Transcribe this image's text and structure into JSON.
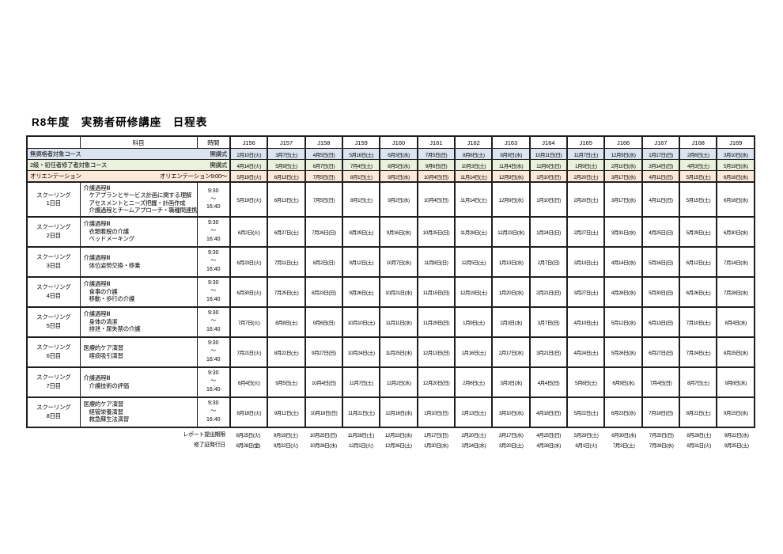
{
  "page": {
    "title": "R8年度　実務者研修講座　日程表"
  },
  "table": {
    "subject_header": "科目",
    "time_header": "時間",
    "class_columns": [
      "J156",
      "J157",
      "J158",
      "J159",
      "J160",
      "J161",
      "J162",
      "J163",
      "J164",
      "J165",
      "J166",
      "J167",
      "J168",
      "J169"
    ],
    "row_colors": {
      "no_qualification": "#dbe5f1",
      "level2_completed": "#eaf1dd",
      "orientation": "#fde9d9"
    },
    "course_rows": [
      {
        "name": "無資格者対象コース",
        "time_label": "開講式",
        "color": "#dbe5f1",
        "dates": [
          "2月10日(火)",
          "3月7日(土)",
          "4月5日(日)",
          "5月16日(土)",
          "6月3日(水)",
          "7月5日(日)",
          "8月8日(土)",
          "9月9日(水)",
          "10月11日(日)",
          "11月7日(土)",
          "12月9日(水)",
          "1月17日(日)",
          "2月6日(土)",
          "3月10日(水)"
        ]
      },
      {
        "name": "2級・初任者修了者対象コース",
        "time_label": "開講式",
        "color": "#eaf1dd",
        "dates": [
          "4月14日(火)",
          "5月9日(土)",
          "6月7日(日)",
          "7月4日(土)",
          "8月5日(水)",
          "9月6日(日)",
          "10月3日(土)",
          "11月4日(水)",
          "12月6日(日)",
          "1月9日(土)",
          "2月10日(水)",
          "3月14日(日)",
          "4月3日(土)",
          "5月19日(水)"
        ]
      },
      {
        "name": "オリエンテーション",
        "time_label": "オリエンテーション9:00～",
        "color": "#fde9d9",
        "dates": [
          "5月19日(火)",
          "6月13日(土)",
          "7月5日(日)",
          "8月1日(土)",
          "9月2日(水)",
          "10月4日(日)",
          "11月14日(土)",
          "12月9日(水)",
          "1月10日(日)",
          "2月20日(土)",
          "3月17日(水)",
          "4月11日(日)",
          "5月15日(土)",
          "6月16日(水)"
        ]
      }
    ],
    "schooling_rows": [
      {
        "day_line1": "スクーリング",
        "day_line2": "1日目",
        "subject_title": "介護過程Ⅲ",
        "subject_details": [
          "ケアプランとサービス計画に関する理解",
          "アセスメントとニーズ把握・計画作成",
          "介護過程とチームアプローチ・職種間連携"
        ],
        "time_start": "9:30",
        "time_tilde": "～",
        "time_end": "16:40",
        "dates": [
          "5月19日(火)",
          "6月13日(土)",
          "7月5日(日)",
          "8月1日(土)",
          "9月2日(水)",
          "10月4日(日)",
          "11月14日(土)",
          "12月9日(水)",
          "1月10日(日)",
          "2月20日(土)",
          "3月17日(水)",
          "4月11日(日)",
          "5月15日(土)",
          "6月16日(水)"
        ]
      },
      {
        "day_line1": "スクーリング",
        "day_line2": "2日目",
        "subject_title": "介護過程Ⅲ",
        "subject_details": [
          "衣類着脱の介護",
          "ベッドメーキング"
        ],
        "time_start": "9:30",
        "time_tilde": "～",
        "time_end": "16:40",
        "dates": [
          "6月2日(火)",
          "6月27日(土)",
          "7月26日(日)",
          "8月29日(土)",
          "9月16日(水)",
          "10月25日(日)",
          "11月28日(土)",
          "12月23日(水)",
          "1月24日(日)",
          "2月27日(土)",
          "3月31日(水)",
          "4月25日(日)",
          "5月29日(土)",
          "6月30日(水)"
        ]
      },
      {
        "day_line1": "スクーリング",
        "day_line2": "3日目",
        "subject_title": "介護過程Ⅲ",
        "subject_details": [
          "体位姿勢交換・移乗"
        ],
        "time_start": "9:30",
        "time_tilde": "～",
        "time_end": "16:40",
        "dates": [
          "6月23日(火)",
          "7月11日(土)",
          "8月2日(日)",
          "9月12日(土)",
          "10月7日(水)",
          "11月8日(日)",
          "12月5日(土)",
          "1月13日(水)",
          "2月7日(日)",
          "3月13日(土)",
          "4月14日(水)",
          "5月16日(日)",
          "6月12日(土)",
          "7月14日(水)"
        ]
      },
      {
        "day_line1": "スクーリング",
        "day_line2": "4日目",
        "subject_title": "介護過程Ⅲ",
        "subject_details": [
          "食事の介護",
          "移動・歩行の介護"
        ],
        "time_start": "9:30",
        "time_tilde": "～",
        "time_end": "16:40",
        "dates": [
          "6月30日(火)",
          "7月25日(土)",
          "8月23日(日)",
          "9月26日(土)",
          "10月21日(水)",
          "11月15日(日)",
          "12月19日(土)",
          "1月20日(水)",
          "2月21日(日)",
          "3月27日(土)",
          "4月28日(水)",
          "5月30日(日)",
          "6月26日(土)",
          "7月28日(水)"
        ]
      },
      {
        "day_line1": "スクーリング",
        "day_line2": "5日目",
        "subject_title": "介護過程Ⅲ",
        "subject_details": [
          "身体の清潔",
          "排泄・尿失禁の介護"
        ],
        "time_start": "9:30",
        "time_tilde": "～",
        "time_end": "16:40",
        "dates": [
          "7月7日(火)",
          "8月8日(土)",
          "9月6日(日)",
          "10月10日(土)",
          "11月11日(水)",
          "11月29日(日)",
          "1月9日(土)",
          "2月3日(水)",
          "3月7日(日)",
          "4月10日(土)",
          "5月12日(水)",
          "6月13日(日)",
          "7月10日(土)",
          "8月4日(水)"
        ]
      },
      {
        "day_line1": "スクーリング",
        "day_line2": "6日目",
        "subject_title": "医療的ケア演習",
        "subject_details": [
          "喀痰吸引演習"
        ],
        "time_start": "9:30",
        "time_tilde": "～",
        "time_end": "16:40",
        "dates": [
          "7月21日(火)",
          "8月22日(土)",
          "9月27日(日)",
          "10月24日(土)",
          "11月25日(水)",
          "12月13日(日)",
          "1月16日(土)",
          "2月17日(水)",
          "3月21日(日)",
          "4月24日(土)",
          "5月26日(水)",
          "6月27日(日)",
          "7月24日(土)",
          "8月25日(水)"
        ]
      },
      {
        "day_line1": "スクーリング",
        "day_line2": "7日目",
        "subject_title": "介護過程Ⅲ",
        "subject_details": [
          "介護技術の評価"
        ],
        "time_start": "9:30",
        "time_tilde": "～",
        "time_end": "16:40",
        "dates": [
          "8月4日(火)",
          "9月5日(土)",
          "10月4日(日)",
          "11月7日(土)",
          "12月2日(水)",
          "12月20日(日)",
          "2月6日(土)",
          "3月3日(水)",
          "4月4日(日)",
          "5月8日(土)",
          "6月9日(水)",
          "7月4日(日)",
          "8月7日(土)",
          "9月8日(水)"
        ]
      },
      {
        "day_line1": "スクーリング",
        "day_line2": "8日目",
        "subject_title": "医療的ケア演習",
        "subject_details": [
          "経管栄養演習",
          "救急蘇生法演習"
        ],
        "time_start": "9:30",
        "time_tilde": "～",
        "time_end": "16:40",
        "dates": [
          "8月18日(火)",
          "9月12日(土)",
          "10月18日(日)",
          "11月21日(土)",
          "12月16日(水)",
          "1月10日(日)",
          "2月13日(土)",
          "3月10日(水)",
          "4月18日(日)",
          "5月22日(土)",
          "6月23日(水)",
          "7月18日(日)",
          "8月21日(土)",
          "9月15日(水)"
        ]
      }
    ],
    "footer_rows": [
      {
        "label": "レポート提出期限",
        "dates": [
          "8月25日(火)",
          "9月19日(土)",
          "10月25日(日)",
          "11月28日(土)",
          "12月23日(水)",
          "1月17日(日)",
          "2月20日(土)",
          "3月17日(水)",
          "4月25日(日)",
          "5月29日(土)",
          "6月30日(水)",
          "7月25日(日)",
          "8月28日(土)",
          "9月22日(水)"
        ]
      },
      {
        "label": "修了証発行日",
        "dates": [
          "8月28日(金)",
          "9月22日(火)",
          "10月28日(水)",
          "12月1日(火)",
          "12月26日(土)",
          "1月20日(水)",
          "2月24日(水)",
          "3月20日(土)",
          "4月28日(水)",
          "6月1日(火)",
          "7月3日(土)",
          "7月28日(水)",
          "8月31日(火)",
          "9月25日(土)"
        ]
      }
    ]
  }
}
